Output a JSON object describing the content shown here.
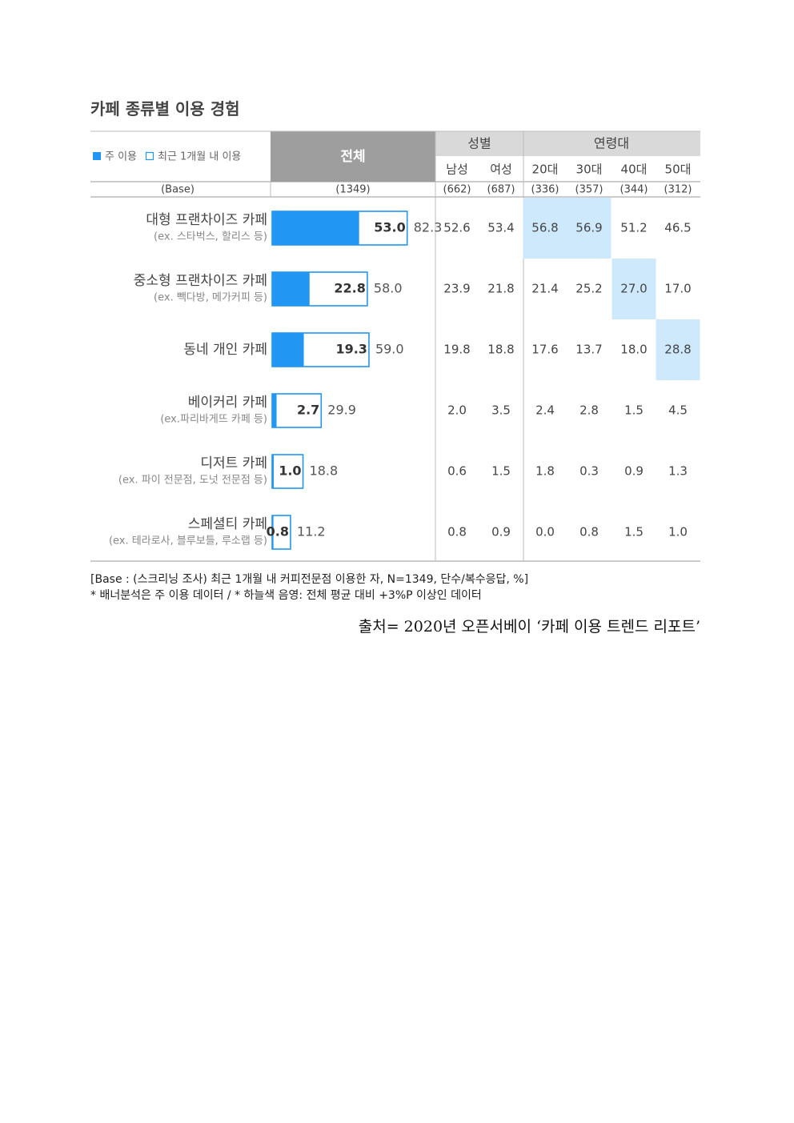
{
  "title": "카페 종류별 이용 경험",
  "legend": {
    "primary": "주 이용",
    "secondary": "최근 1개월 내 이용"
  },
  "colors": {
    "primary": "#2196f3",
    "highlight": "#cde9fb",
    "header_dark": "#9e9e9e",
    "header_light": "#d9d9d9"
  },
  "columns": {
    "total": "전체",
    "groups": [
      {
        "label": "성별",
        "subs": [
          "남성",
          "여성"
        ]
      },
      {
        "label": "연령대",
        "subs": [
          "20대",
          "30대",
          "40대",
          "50대"
        ]
      }
    ]
  },
  "base": {
    "label": "(Base)",
    "total": "(1349)",
    "subs": [
      "(662)",
      "(687)",
      "(336)",
      "(357)",
      "(344)",
      "(312)"
    ]
  },
  "chart_data": {
    "type": "bar",
    "categories": [
      "대형 프랜차이즈 카페",
      "중소형 프랜차이즈 카페",
      "동네 개인 카페",
      "베이커리 카페",
      "디저트 카페",
      "스페셜티 카페"
    ],
    "subtitles": [
      "(ex. 스타벅스, 할리스 등)",
      "(ex. 빽다방, 메가커피 등)",
      "",
      "(ex.파리바게뜨 카페 등)",
      "(ex. 파이 전문점, 도넛 전문점 등)",
      "(ex. 테라로사, 블루보틀, 루소랩 등)"
    ],
    "series": [
      {
        "name": "주 이용",
        "values": [
          53.0,
          22.8,
          19.3,
          2.7,
          1.0,
          0.8
        ]
      },
      {
        "name": "최근 1개월 내 이용",
        "values": [
          82.3,
          58.0,
          59.0,
          29.9,
          18.8,
          11.2
        ]
      }
    ],
    "breakdown_headers": [
      "남성",
      "여성",
      "20대",
      "30대",
      "40대",
      "50대"
    ],
    "breakdown": [
      [
        "52.6",
        "53.4",
        "56.8",
        "56.9",
        "51.2",
        "46.5"
      ],
      [
        "23.9",
        "21.8",
        "21.4",
        "25.2",
        "27.0",
        "17.0"
      ],
      [
        "19.8",
        "18.8",
        "17.6",
        "13.7",
        "18.0",
        "28.8"
      ],
      [
        "2.0",
        "3.5",
        "2.4",
        "2.8",
        "1.5",
        "4.5"
      ],
      [
        "0.6",
        "1.5",
        "1.8",
        "0.3",
        "0.9",
        "1.3"
      ],
      [
        "0.8",
        "0.9",
        "0.0",
        "0.8",
        "1.5",
        "1.0"
      ]
    ],
    "highlighted": [
      [
        0,
        2
      ],
      [
        0,
        3
      ],
      [
        1,
        4
      ],
      [
        2,
        5
      ]
    ]
  },
  "notes": [
    "[Base : (스크리닝 조사) 최근 1개월 내 커피전문점 이용한 자, N=1349, 단수/복수응답, %]",
    "* 배너분석은 주 이용 데이터 / * 하늘색 음영: 전체 평균 대비 +3%P 이상인 데이터"
  ],
  "source": "출처= 2020년 오픈서베이 ‘카페 이용 트렌드 리포트’"
}
